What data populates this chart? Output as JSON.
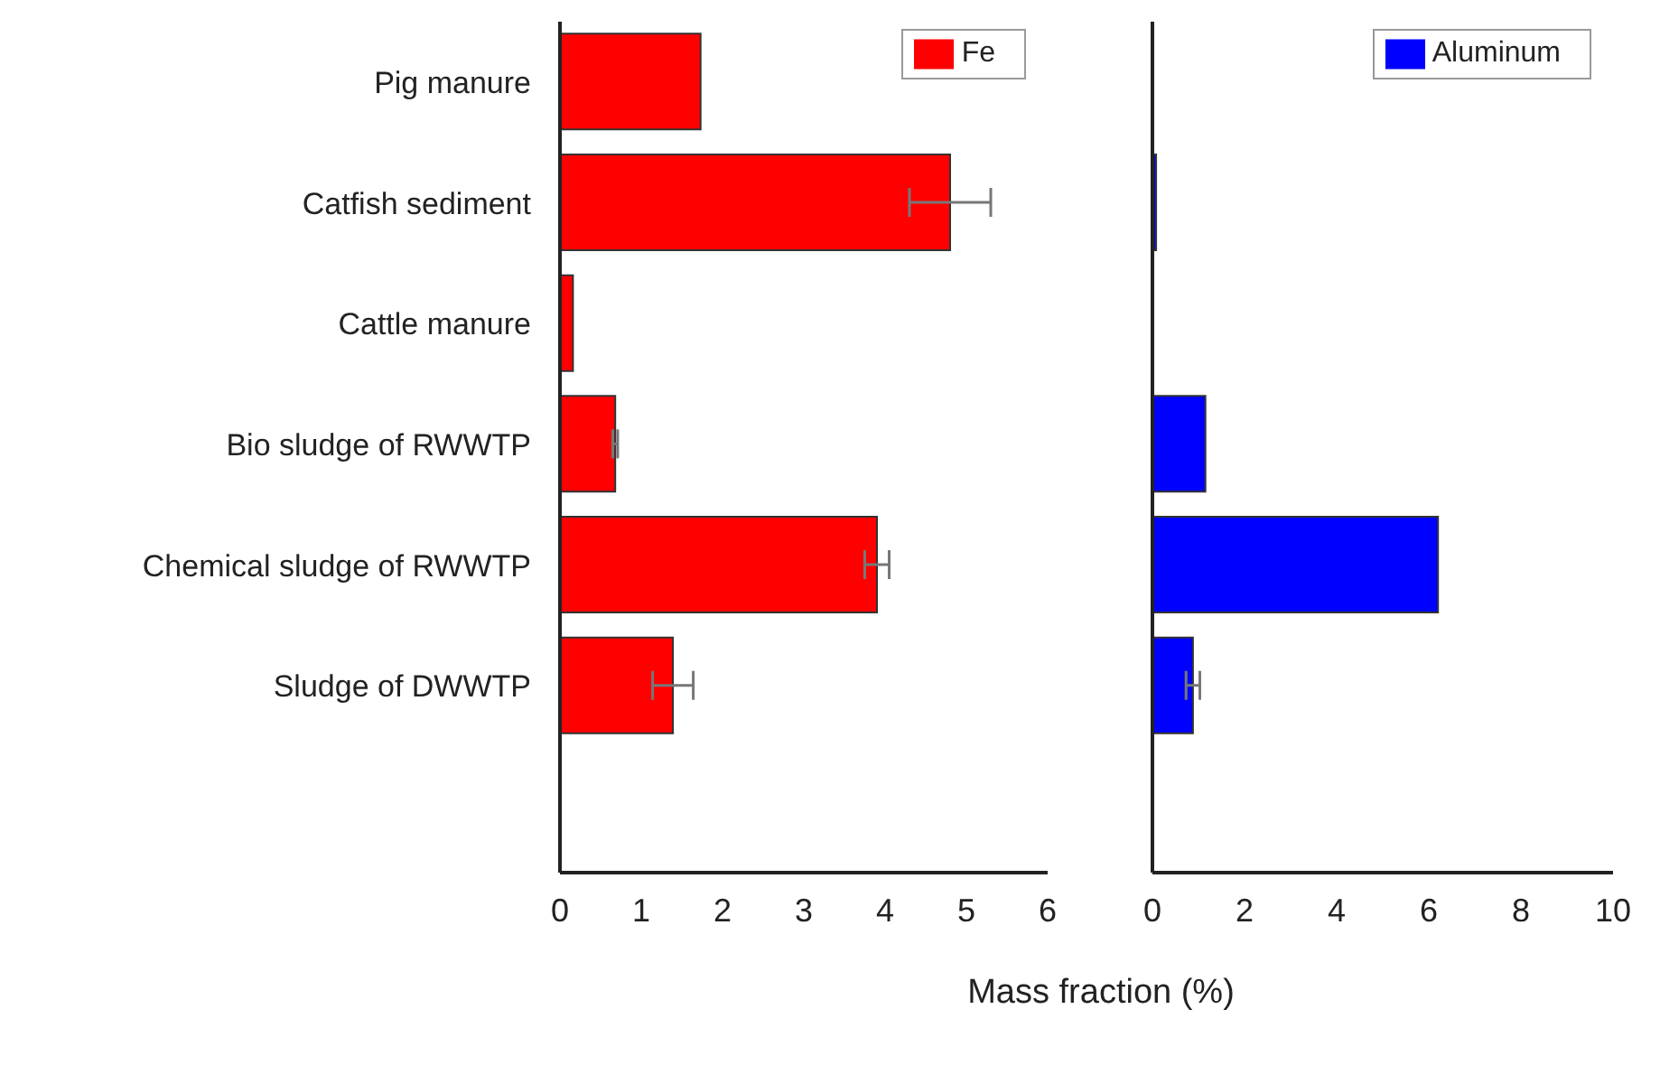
{
  "chart_data": [
    {
      "type": "bar",
      "orientation": "horizontal",
      "categories": [
        "Pig manure",
        "Catfish sediment",
        "Cattle manure",
        "Bio sludge of RWWTP",
        "Chemical sludge of RWWTP",
        "Sludge of DWWTP"
      ],
      "series": [
        {
          "name": "Fe",
          "color": "#ff0000",
          "values": [
            1.73,
            4.8,
            0.16,
            0.68,
            3.9,
            1.39
          ],
          "errors": [
            null,
            0.5,
            null,
            0.03,
            0.15,
            0.25
          ]
        }
      ],
      "xlim": [
        0,
        6
      ],
      "xticks": [
        0,
        1,
        2,
        3,
        4,
        5,
        6
      ],
      "xlabel": "Mass fraction (%)",
      "legend": "top right"
    },
    {
      "type": "bar",
      "orientation": "horizontal",
      "categories": [
        null,
        null,
        null,
        null,
        null,
        null
      ],
      "series": [
        {
          "name": "Aluminum",
          "color": "#0000ff",
          "values": [
            null,
            0.08,
            null,
            1.15,
            6.2,
            0.88
          ],
          "errors": [
            null,
            null,
            null,
            null,
            null,
            0.15
          ]
        }
      ],
      "xlim": [
        0,
        10
      ],
      "xticks": [
        0,
        2,
        4,
        6,
        8,
        10
      ],
      "legend": "top right",
      "tick_labels": "x"
    }
  ]
}
